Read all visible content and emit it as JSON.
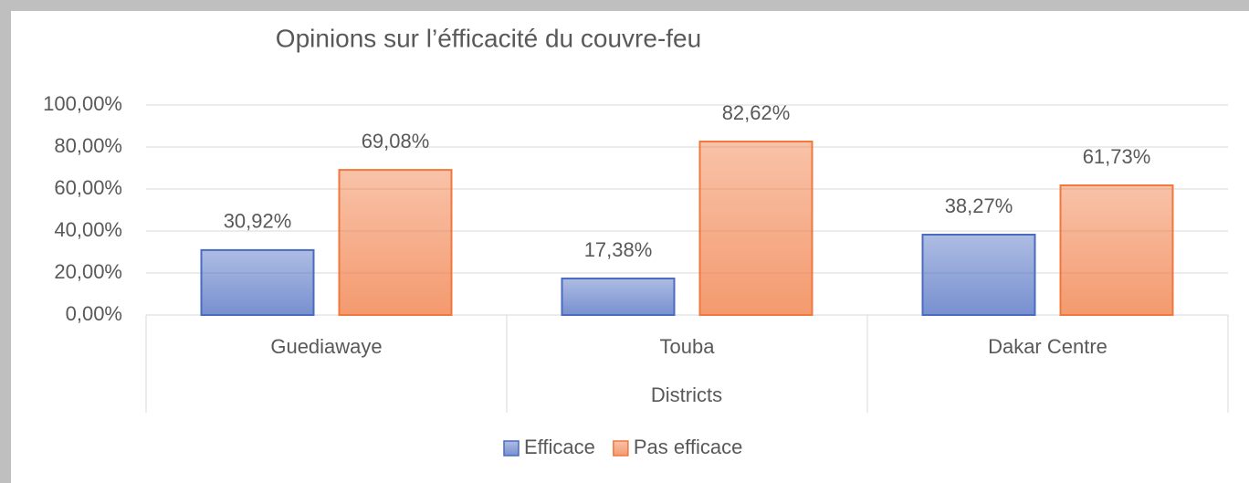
{
  "chart_data": {
    "type": "bar",
    "title": "Opinions sur l’éfficacité du couvre-feu",
    "x_label": "Districts",
    "categories": [
      "Guediawaye",
      "Touba",
      "Dakar Centre"
    ],
    "series": [
      {
        "name": "Efficace",
        "color": "#4a6bc0",
        "values": [
          30.92,
          17.38,
          38.27
        ],
        "value_labels": [
          "30,92%",
          "17,38%",
          "38,27%"
        ]
      },
      {
        "name": "Pas efficace",
        "color": "#f0783e",
        "values": [
          69.08,
          82.62,
          61.73
        ],
        "value_labels": [
          "69,08%",
          "82,62%",
          "61,73%"
        ]
      }
    ],
    "ylim": [
      0,
      100
    ],
    "yticks": [
      {
        "value": 0,
        "label": "0,00%"
      },
      {
        "value": 20,
        "label": "20,00%"
      },
      {
        "value": 40,
        "label": "40,00%"
      },
      {
        "value": 60,
        "label": "60,00%"
      },
      {
        "value": 80,
        "label": "80,00%"
      },
      {
        "value": 100,
        "label": "100,00%"
      }
    ],
    "grid": true,
    "legend": "bottom"
  }
}
